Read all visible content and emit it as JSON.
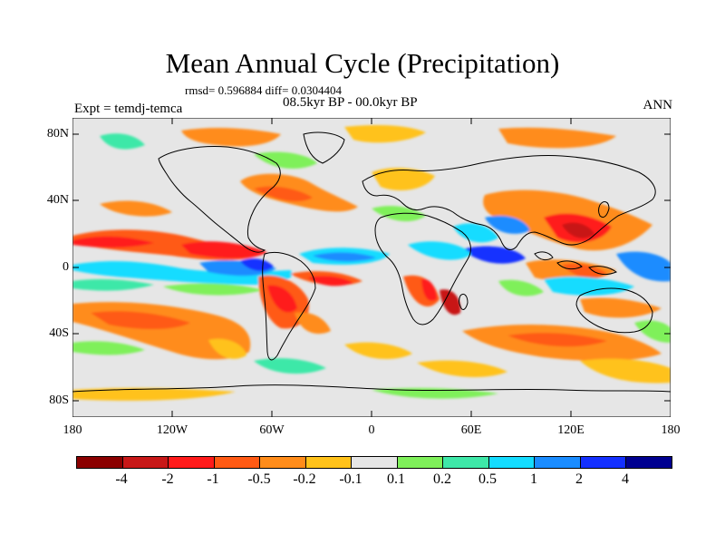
{
  "title": "Mean Annual Cycle (Precipitation)",
  "stats": "rmsd= 0.596884 diff= 0.0304404",
  "period": "08.5kyr BP - 00.0kyr BP",
  "experiment": "Expt = temdj-temca",
  "season": "ANN",
  "lat_labels": [
    "80N",
    "40N",
    "0",
    "40S",
    "80S"
  ],
  "lon_labels": [
    "180",
    "120W",
    "60W",
    "0",
    "60E",
    "120E",
    "180"
  ],
  "colorbar": {
    "labels": [
      "-4",
      "-2",
      "-1",
      "-0.5",
      "-0.2",
      "-0.1",
      "0.1",
      "0.2",
      "0.5",
      "1",
      "2",
      "4"
    ],
    "colors": [
      "#8b0000",
      "#c81818",
      "#ff1a1a",
      "#ff5a14",
      "#ff8c1a",
      "#ffc21a",
      "#e6e6e6",
      "#7ff05a",
      "#3ee8a8",
      "#14dcff",
      "#1a8cff",
      "#1430ff",
      "#000090"
    ]
  },
  "map_colors": {
    "background": "#e6e6e6",
    "coast": "#000000"
  }
}
